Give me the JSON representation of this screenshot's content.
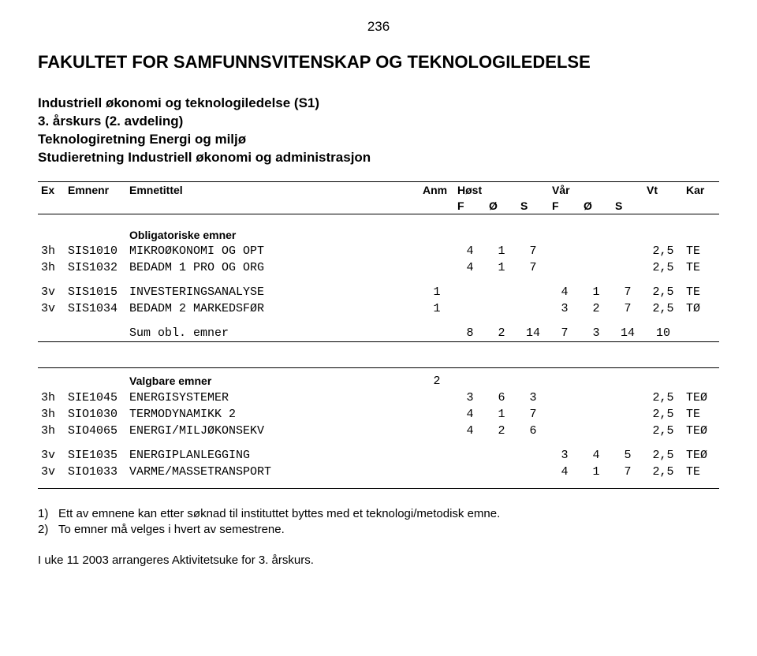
{
  "page_number": "236",
  "main_title": "FAKULTET FOR SAMFUNNSVITENSKAP OG TEKNOLOGILEDELSE",
  "subtitle": {
    "line1": "Industriell økonomi og teknologiledelse (S1)",
    "line2": "3. årskurs (2. avdeling)",
    "line3": "Teknologiretning Energi og miljø",
    "line4": "Studieretning Industriell økonomi og administrasjon"
  },
  "header": {
    "ex": "Ex",
    "emnenr": "Emnenr",
    "emnetittel": "Emnetittel",
    "anm": "Anm",
    "host": "Høst",
    "var": "Vår",
    "vt": "Vt",
    "kar": "Kar",
    "F": "F",
    "O": "Ø",
    "S": "S"
  },
  "sections": {
    "oblig_label": "Obligatoriske emner",
    "valg_label": "Valgbare emner",
    "valg_anm": "2",
    "sum_label": "Sum obl. emner"
  },
  "rows": {
    "oblig": [
      {
        "ex": "3h",
        "nr": "SIS1010",
        "tit": "MIKROØKONOMI OG OPT",
        "anm": "",
        "hF": "4",
        "hO": "1",
        "hS": "7",
        "vF": "",
        "vO": "",
        "vS": "",
        "vt": "2,5",
        "kar": "TE"
      },
      {
        "ex": "3h",
        "nr": "SIS1032",
        "tit": "BEDADM 1 PRO OG ORG",
        "anm": "",
        "hF": "4",
        "hO": "1",
        "hS": "7",
        "vF": "",
        "vO": "",
        "vS": "",
        "vt": "2,5",
        "kar": "TE"
      }
    ],
    "oblig2": [
      {
        "ex": "3v",
        "nr": "SIS1015",
        "tit": "INVESTERINGSANALYSE",
        "anm": "1",
        "hF": "",
        "hO": "",
        "hS": "",
        "vF": "4",
        "vO": "1",
        "vS": "7",
        "vt": "2,5",
        "kar": "TE"
      },
      {
        "ex": "3v",
        "nr": "SIS1034",
        "tit": "BEDADM 2 MARKEDSFØR",
        "anm": "1",
        "hF": "",
        "hO": "",
        "hS": "",
        "vF": "3",
        "vO": "2",
        "vS": "7",
        "vt": "2,5",
        "kar": "TØ"
      }
    ],
    "sum": {
      "hF": "8",
      "hO": "2",
      "hS": "14",
      "vF": "7",
      "vO": "3",
      "vS": "14",
      "vt": "10"
    },
    "valg": [
      {
        "ex": "3h",
        "nr": "SIE1045",
        "tit": "ENERGISYSTEMER",
        "anm": "",
        "hF": "3",
        "hO": "6",
        "hS": "3",
        "vF": "",
        "vO": "",
        "vS": "",
        "vt": "2,5",
        "kar": "TEØ"
      },
      {
        "ex": "3h",
        "nr": "SIO1030",
        "tit": "TERMODYNAMIKK 2",
        "anm": "",
        "hF": "4",
        "hO": "1",
        "hS": "7",
        "vF": "",
        "vO": "",
        "vS": "",
        "vt": "2,5",
        "kar": "TE"
      },
      {
        "ex": "3h",
        "nr": "SIO4065",
        "tit": "ENERGI/MILJØKONSEKV",
        "anm": "",
        "hF": "4",
        "hO": "2",
        "hS": "6",
        "vF": "",
        "vO": "",
        "vS": "",
        "vt": "2,5",
        "kar": "TEØ"
      }
    ],
    "valg2": [
      {
        "ex": "3v",
        "nr": "SIE1035",
        "tit": "ENERGIPLANLEGGING",
        "anm": "",
        "hF": "",
        "hO": "",
        "hS": "",
        "vF": "3",
        "vO": "4",
        "vS": "5",
        "vt": "2,5",
        "kar": "TEØ"
      },
      {
        "ex": "3v",
        "nr": "SIO1033",
        "tit": "VARME/MASSETRANSPORT",
        "anm": "",
        "hF": "",
        "hO": "",
        "hS": "",
        "vF": "4",
        "vO": "1",
        "vS": "7",
        "vt": "2,5",
        "kar": "TE"
      }
    ]
  },
  "footnotes": {
    "f1_num": "1)",
    "f1_text": "Ett av emnene kan etter søknad til instituttet byttes med et teknologi/metodisk emne.",
    "f2_num": "2)",
    "f2_text": "To emner må velges i hvert av semestrene."
  },
  "week_note": "I uke 11 2003 arrangeres Aktivitetsuke for 3. årskurs."
}
